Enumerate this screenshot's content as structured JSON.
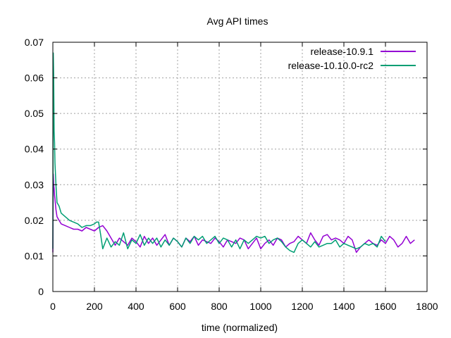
{
  "chart_data": {
    "type": "line",
    "title": "Avg API times",
    "xlabel": "time (normalized)",
    "ylabel": "",
    "xlim": [
      0,
      1800
    ],
    "ylim": [
      0,
      0.07
    ],
    "x_ticks": [
      "0",
      "200",
      "400",
      "600",
      "800",
      "1000",
      "1200",
      "1400",
      "1600",
      "1800"
    ],
    "y_ticks": [
      "0",
      "0.01",
      "0.02",
      "0.03",
      "0.04",
      "0.05",
      "0.06",
      "0.07"
    ],
    "grid": true,
    "legend_position": "top-right",
    "series": [
      {
        "name": "release-10.9.1",
        "color": "#9400d3",
        "x": [
          0,
          2,
          4,
          6,
          8,
          10,
          15,
          20,
          30,
          40,
          60,
          80,
          100,
          120,
          140,
          160,
          180,
          200,
          220,
          240,
          260,
          280,
          300,
          320,
          340,
          360,
          380,
          400,
          420,
          440,
          460,
          480,
          500,
          520,
          540,
          560,
          580,
          600,
          620,
          640,
          660,
          680,
          700,
          720,
          740,
          760,
          780,
          800,
          820,
          840,
          860,
          880,
          900,
          920,
          940,
          960,
          980,
          1000,
          1020,
          1040,
          1060,
          1080,
          1100,
          1120,
          1140,
          1160,
          1180,
          1200,
          1220,
          1240,
          1260,
          1280,
          1300,
          1320,
          1340,
          1360,
          1380,
          1400,
          1420,
          1440,
          1460,
          1480,
          1500,
          1520,
          1540,
          1560,
          1580,
          1600,
          1620,
          1640,
          1660,
          1680,
          1700,
          1720,
          1740
        ],
        "values": [
          0.011,
          0.033,
          0.03,
          0.029,
          0.027,
          0.026,
          0.023,
          0.021,
          0.02,
          0.019,
          0.0185,
          0.018,
          0.0175,
          0.0175,
          0.017,
          0.018,
          0.0175,
          0.017,
          0.018,
          0.0185,
          0.017,
          0.015,
          0.013,
          0.015,
          0.014,
          0.013,
          0.015,
          0.014,
          0.0125,
          0.0155,
          0.0135,
          0.015,
          0.013,
          0.0145,
          0.016,
          0.013,
          0.015,
          0.014,
          0.0125,
          0.015,
          0.014,
          0.0155,
          0.013,
          0.0145,
          0.014,
          0.0135,
          0.015,
          0.014,
          0.0125,
          0.0145,
          0.014,
          0.0135,
          0.015,
          0.0145,
          0.012,
          0.0135,
          0.015,
          0.012,
          0.0135,
          0.0145,
          0.013,
          0.015,
          0.0145,
          0.0125,
          0.0135,
          0.014,
          0.0155,
          0.0145,
          0.0135,
          0.0165,
          0.0145,
          0.013,
          0.0155,
          0.016,
          0.0145,
          0.015,
          0.0145,
          0.0135,
          0.0155,
          0.0145,
          0.011,
          0.0125,
          0.0135,
          0.0145,
          0.0135,
          0.013,
          0.0145,
          0.0135,
          0.0155,
          0.0145,
          0.0125,
          0.0135,
          0.0155,
          0.0135,
          0.0145
        ]
      },
      {
        "name": "release-10.10.0-rc2",
        "color": "#009e73",
        "x": [
          0,
          2,
          4,
          6,
          8,
          10,
          15,
          20,
          30,
          40,
          60,
          80,
          100,
          120,
          140,
          160,
          180,
          200,
          210,
          220,
          230,
          240,
          260,
          280,
          300,
          320,
          340,
          360,
          380,
          400,
          420,
          440,
          460,
          480,
          500,
          520,
          540,
          560,
          580,
          600,
          620,
          640,
          660,
          680,
          700,
          720,
          740,
          760,
          780,
          800,
          820,
          840,
          860,
          880,
          900,
          920,
          940,
          960,
          980,
          1000,
          1020,
          1040,
          1060,
          1080,
          1100,
          1120,
          1140,
          1160,
          1180,
          1200,
          1220,
          1240,
          1260,
          1280,
          1300,
          1320,
          1340,
          1360,
          1380,
          1400,
          1420,
          1440,
          1460,
          1480,
          1500,
          1520,
          1540,
          1560,
          1580,
          1600
        ],
        "values": [
          0.012,
          0.067,
          0.06,
          0.045,
          0.042,
          0.036,
          0.03,
          0.025,
          0.024,
          0.022,
          0.021,
          0.02,
          0.0195,
          0.019,
          0.018,
          0.0185,
          0.0185,
          0.019,
          0.0195,
          0.0195,
          0.016,
          0.012,
          0.015,
          0.0125,
          0.014,
          0.013,
          0.0165,
          0.012,
          0.0145,
          0.0135,
          0.016,
          0.013,
          0.015,
          0.0135,
          0.015,
          0.0125,
          0.0145,
          0.013,
          0.015,
          0.014,
          0.0125,
          0.015,
          0.0135,
          0.0155,
          0.0145,
          0.0155,
          0.0135,
          0.0145,
          0.0155,
          0.0135,
          0.015,
          0.0145,
          0.0125,
          0.0145,
          0.012,
          0.0145,
          0.0135,
          0.0145,
          0.0155,
          0.015,
          0.0155,
          0.0135,
          0.0145,
          0.015,
          0.014,
          0.0125,
          0.0115,
          0.011,
          0.0135,
          0.0145,
          0.0135,
          0.0125,
          0.014,
          0.0125,
          0.013,
          0.0135,
          0.0135,
          0.0145,
          0.0125,
          0.0135,
          0.013,
          0.0125,
          0.012,
          0.0125,
          0.0135,
          0.013,
          0.0135,
          0.0125,
          0.0155,
          0.014
        ]
      }
    ]
  }
}
